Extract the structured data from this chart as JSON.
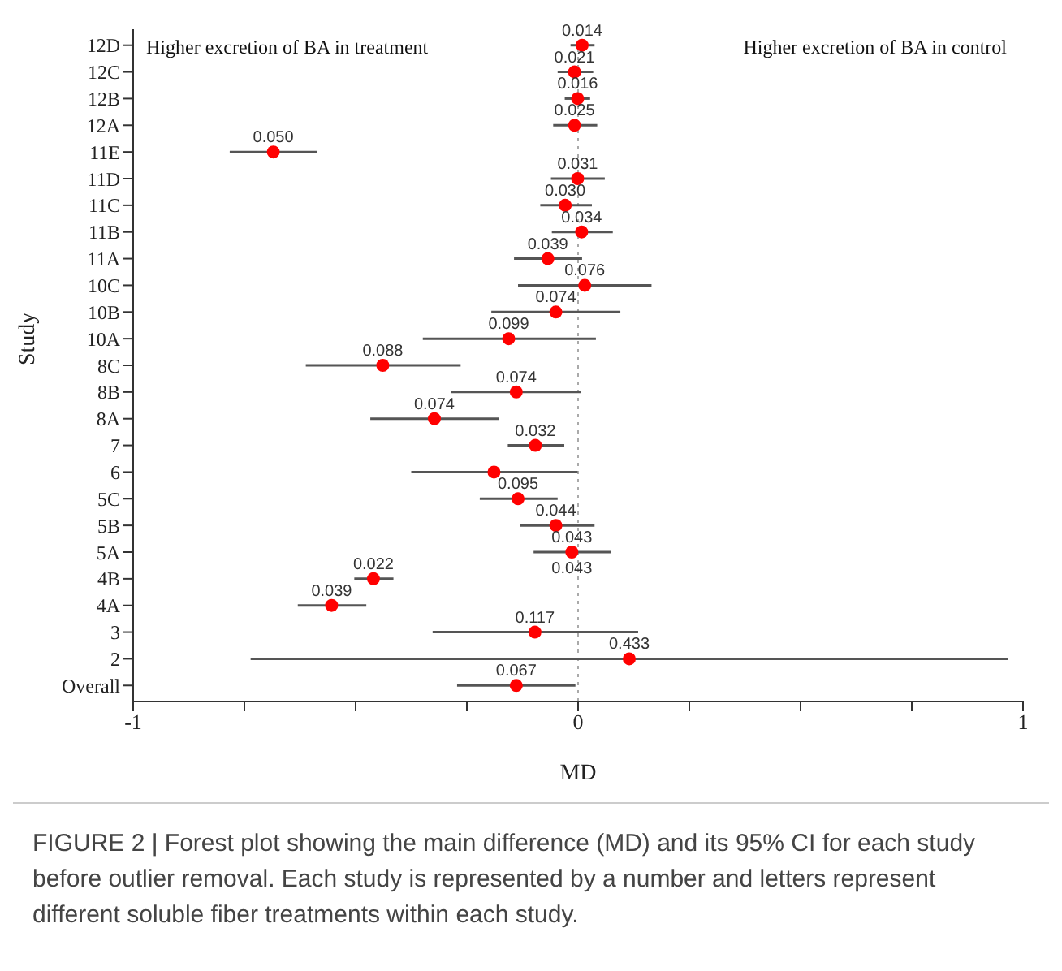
{
  "chart_data": {
    "type": "scatter",
    "orientation": "horizontal",
    "xlabel": "MD",
    "ylabel": "Study",
    "categories": [
      "12D",
      "12C",
      "12B",
      "12A",
      "11E",
      "11D",
      "11C",
      "11B",
      "11A",
      "10C",
      "10B",
      "10A",
      "8C",
      "8B",
      "8A",
      "7",
      "6",
      "5C",
      "5B",
      "5A",
      "4B",
      "4A",
      "3",
      "2",
      "Overall"
    ],
    "series": [
      {
        "color": "#ff0000",
        "values": [
          0.009,
          -0.008,
          -0.001,
          -0.008,
          -0.685,
          -0.001,
          -0.029,
          0.008,
          -0.068,
          0.015,
          -0.05,
          -0.156,
          -0.439,
          -0.139,
          -0.323,
          -0.096,
          -0.189,
          -0.135,
          -0.05,
          -0.014,
          -0.46,
          -0.554,
          -0.097,
          0.115,
          -0.139
        ],
        "errors": [
          [
            -0.017,
            0.037
          ],
          [
            -0.046,
            0.034
          ],
          [
            -0.03,
            0.027
          ],
          [
            -0.056,
            0.043
          ],
          [
            -0.783,
            -0.586
          ],
          [
            -0.061,
            0.06
          ],
          [
            -0.085,
            0.031
          ],
          [
            -0.059,
            0.078
          ],
          [
            -0.144,
            0.009
          ],
          [
            -0.135,
            0.165
          ],
          [
            -0.195,
            0.095
          ],
          [
            -0.349,
            0.04
          ],
          [
            -0.612,
            -0.264
          ],
          [
            -0.285,
            0.006
          ],
          [
            -0.467,
            -0.177
          ],
          [
            -0.158,
            -0.031
          ],
          [
            -0.375,
            -0.001
          ],
          [
            -0.221,
            -0.046
          ],
          [
            -0.131,
            0.037
          ],
          [
            -0.1,
            0.073
          ],
          [
            -0.503,
            -0.415
          ],
          [
            -0.63,
            -0.476
          ],
          [
            -0.327,
            0.135
          ],
          [
            -0.736,
            0.966
          ],
          [
            -0.272,
            -0.006
          ]
        ]
      }
    ],
    "xlim": [
      -1,
      1
    ],
    "xticks": [
      -1,
      {
        "value": -0.75,
        "label": null
      },
      {
        "value": -0.5,
        "label": null
      },
      {
        "value": -0.25,
        "label": null
      },
      0,
      {
        "value": 0.25,
        "label": null
      },
      {
        "value": 0.5,
        "label": null
      },
      {
        "value": 0.75,
        "label": null
      },
      1
    ],
    "ref_lines": [
      {
        "axis": "x",
        "value": 0,
        "color": "#aaaaaa",
        "line_style": "dotted"
      }
    ],
    "marker": "circle",
    "grid": false,
    "legend": false,
    "annotations": [
      "Higher excretion of BA in treatment",
      "Higher excretion of BA in control",
      {
        "text": "0.014",
        "x": 0.009,
        "y": "12D"
      },
      {
        "text": "0.021",
        "x": -0.008,
        "y": "12C"
      },
      {
        "text": "0.016",
        "x": -0.001,
        "y": "12B"
      },
      {
        "text": "0.025",
        "x": -0.008,
        "y": "12A"
      },
      {
        "text": "0.050",
        "x": -0.685,
        "y": "11E"
      },
      {
        "text": "0.031",
        "x": -0.001,
        "y": "11D"
      },
      {
        "text": "0.030",
        "x": -0.029,
        "y": "11C"
      },
      {
        "text": "0.034",
        "x": 0.008,
        "y": "11B"
      },
      {
        "text": "0.039",
        "x": -0.068,
        "y": "11A"
      },
      {
        "text": "0.076",
        "x": 0.015,
        "y": "10C"
      },
      {
        "text": "0.074",
        "x": -0.05,
        "y": "10B"
      },
      {
        "text": "0.099",
        "x": -0.156,
        "y": "10A"
      },
      {
        "text": "0.088",
        "x": -0.439,
        "y": "8C"
      },
      {
        "text": "0.074",
        "x": -0.139,
        "y": "8B"
      },
      {
        "text": "0.074",
        "x": -0.323,
        "y": "8A"
      },
      {
        "text": "0.032",
        "x": -0.096,
        "y": "7"
      },
      {
        "text": "0.095",
        "x": -0.135,
        "y": "5C"
      },
      {
        "text": "0.044",
        "x": -0.05,
        "y": "5B"
      },
      {
        "text": "0.043",
        "x": -0.014,
        "y": "5A"
      },
      {
        "text": "0.043",
        "x": -0.014,
        "y": "5A"
      },
      {
        "text": "0.022",
        "x": -0.46,
        "y": "4B"
      },
      {
        "text": "0.039",
        "x": -0.554,
        "y": "4A"
      },
      {
        "text": "0.117",
        "x": -0.097,
        "y": "3"
      },
      {
        "text": "0.433",
        "x": 0.115,
        "y": "2"
      },
      {
        "text": "0.067",
        "x": -0.139,
        "y": "Overall"
      },
      "FIGURE 2 | Forest plot showing the main difference (MD) and its 95% CI for each study before outlier removal. Each study is represented by a number and letters represent different soluble fiber treatments within each study."
    ]
  }
}
